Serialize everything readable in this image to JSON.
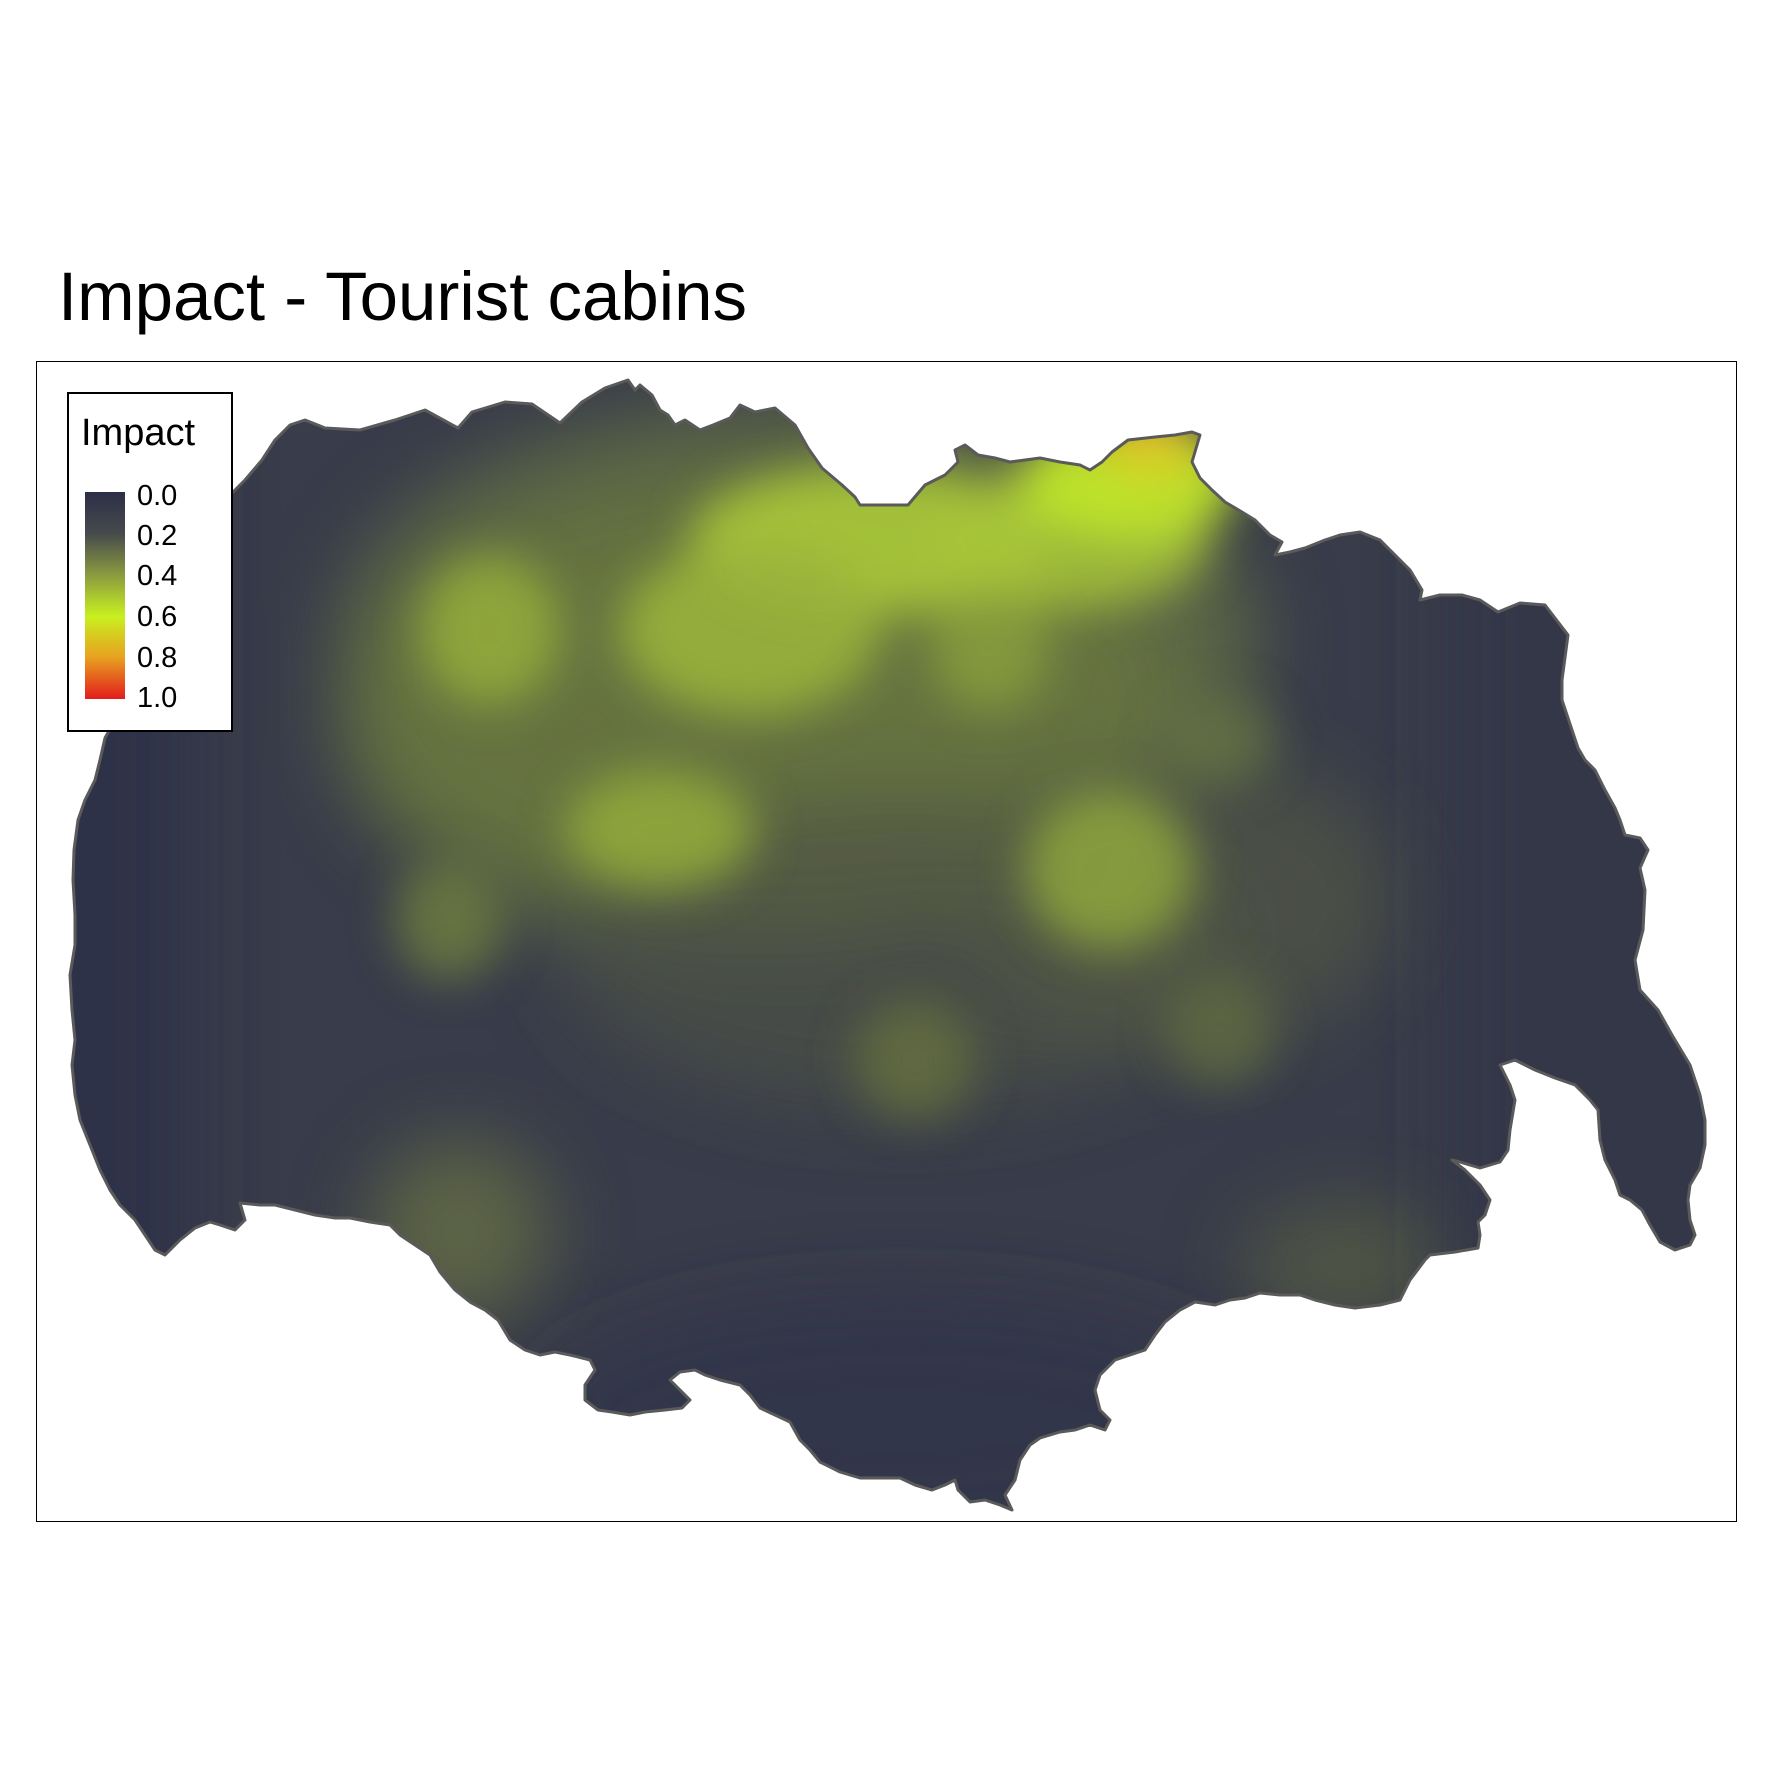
{
  "title": "Impact - Tourist cabins",
  "legend": {
    "title": "Impact",
    "labels": [
      "0.0",
      "0.2",
      "0.4",
      "0.6",
      "0.8",
      "1.0"
    ],
    "colors": [
      "#2c2f48",
      "#464a4c",
      "#8a9a40",
      "#c8f020",
      "#e8a020",
      "#e21c1c"
    ]
  },
  "colors": {
    "low": "#34374a",
    "mid": "#6b7a45",
    "high": "#b8e02a",
    "peak": "#e8a020",
    "outline": "#5a5a5a"
  }
}
